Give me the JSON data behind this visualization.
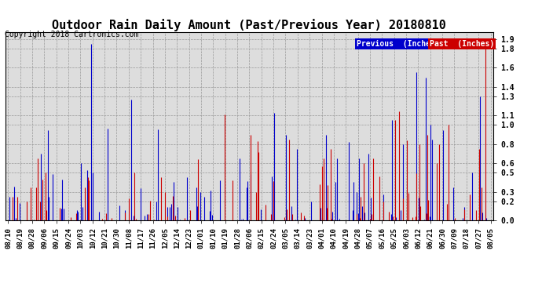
{
  "title": "Outdoor Rain Daily Amount (Past/Previous Year) 20180810",
  "copyright": "Copyright 2018 Cartronics.com",
  "legend_previous": "Previous  (Inches)",
  "legend_past": "Past  (Inches)",
  "legend_prev_color": "#0000CC",
  "legend_past_color": "#CC0000",
  "bg_color": "#FFFFFF",
  "plot_bg_color": "#DDDDDD",
  "grid_color": "#AAAAAA",
  "yticks": [
    0.0,
    0.2,
    0.3,
    0.5,
    0.6,
    0.8,
    1.0,
    1.1,
    1.3,
    1.4,
    1.6,
    1.8,
    1.9
  ],
  "ylim": [
    0.0,
    1.97
  ],
  "xlabels": [
    "08/10",
    "08/19",
    "08/28",
    "09/06",
    "09/15",
    "09/24",
    "10/03",
    "10/12",
    "10/21",
    "10/30",
    "11/08",
    "11/17",
    "11/26",
    "12/05",
    "12/14",
    "12/23",
    "01/01",
    "01/10",
    "01/19",
    "01/28",
    "02/06",
    "02/15",
    "02/24",
    "03/05",
    "03/14",
    "03/23",
    "04/01",
    "04/10",
    "04/19",
    "04/28",
    "05/07",
    "05/16",
    "05/25",
    "06/03",
    "06/12",
    "06/21",
    "06/30",
    "07/09",
    "07/18",
    "07/27",
    "08/05"
  ],
  "title_fontsize": 11,
  "copyright_fontsize": 7,
  "tick_fontsize": 7,
  "label_fontsize": 6.5,
  "prev_color": "#0000CC",
  "past_color": "#CC0000",
  "n_days": 365
}
